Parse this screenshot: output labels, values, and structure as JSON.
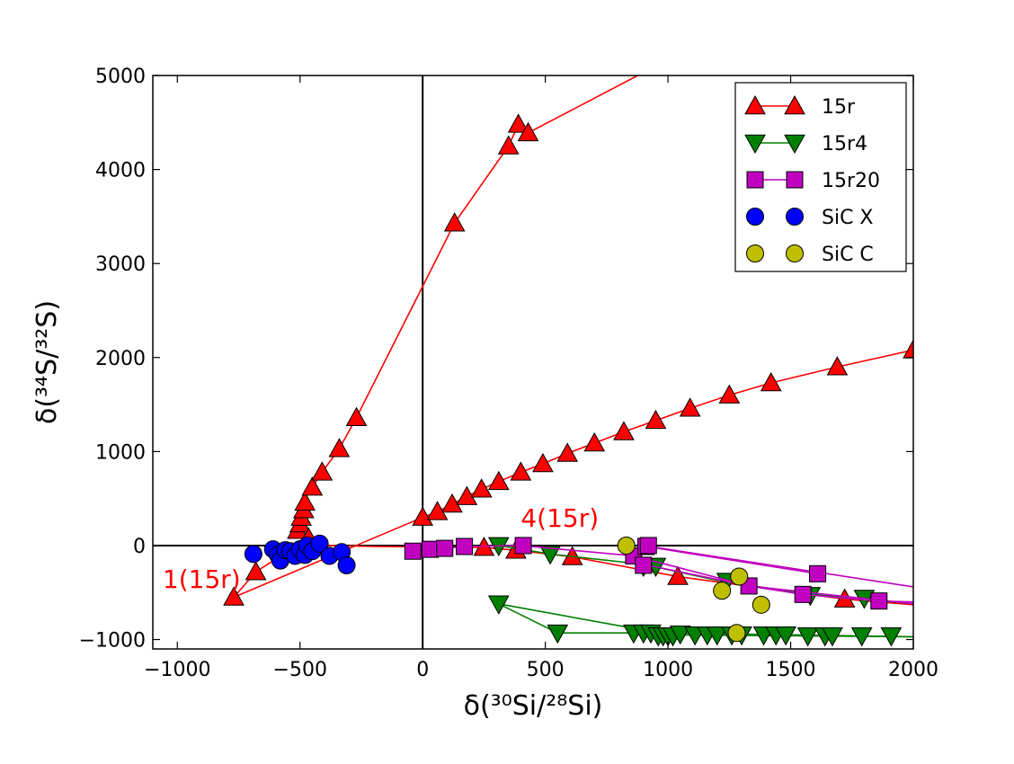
{
  "chart_data": {
    "type": "scatter",
    "title": "",
    "xlabel": "δ(³⁰Si/²⁸Si)",
    "ylabel": "δ(³⁴S/³²S)",
    "xlim": [
      -1100,
      2000
    ],
    "ylim": [
      -1100,
      5000
    ],
    "xticks": [
      -1000,
      -500,
      0,
      500,
      1000,
      1500,
      2000
    ],
    "yticks": [
      -1000,
      0,
      1000,
      2000,
      3000,
      4000,
      5000
    ],
    "xtick_labels": [
      "−1000",
      "−500",
      "0",
      "500",
      "1000",
      "1500",
      "2000"
    ],
    "ytick_labels": [
      "−1000",
      "0",
      "1000",
      "2000",
      "3000",
      "4000",
      "5000"
    ],
    "legend_position": "top-right",
    "reference_lines": {
      "x": 0,
      "y": 0
    },
    "series": [
      {
        "name": "15r",
        "color": "#ff0000",
        "marker": "triangle-up",
        "lines": [
          [
            [
              -770,
              -550
            ],
            [
              -680,
              -280
            ],
            [
              -465,
              80
            ],
            [
              -500,
              140
            ],
            [
              -480,
              280
            ],
            [
              -490,
              460
            ],
            [
              -450,
              620
            ],
            [
              -410,
              780
            ],
            [
              -340,
              1030
            ],
            [
              -270,
              1360
            ],
            [
              130,
              3430
            ],
            [
              350,
              4250
            ],
            [
              390,
              4480
            ],
            [
              430,
              4390
            ],
            [
              1060,
              5250
            ]
          ],
          [
            [
              -770,
              -550
            ],
            [
              0,
              300
            ],
            [
              60,
              360
            ],
            [
              120,
              440
            ],
            [
              180,
              520
            ],
            [
              240,
              600
            ],
            [
              310,
              680
            ],
            [
              400,
              780
            ],
            [
              490,
              870
            ],
            [
              590,
              980
            ],
            [
              700,
              1090
            ],
            [
              820,
              1210
            ],
            [
              950,
              1330
            ],
            [
              1090,
              1460
            ],
            [
              1250,
              1600
            ],
            [
              1420,
              1730
            ],
            [
              1690,
              1900
            ],
            [
              2000,
              2080
            ]
          ],
          [
            [
              -500,
              200
            ],
            [
              -480,
              100
            ],
            [
              -465,
              80
            ],
            [
              -380,
              0
            ],
            [
              -200,
              -10
            ],
            [
              250,
              -20
            ],
            [
              380,
              -50
            ],
            [
              610,
              -120
            ],
            [
              1040,
              -330
            ],
            [
              1720,
              -570
            ],
            [
              2000,
              -630
            ]
          ]
        ],
        "points": [
          [
            -770,
            -550
          ],
          [
            -680,
            -280
          ],
          [
            -510,
            160
          ],
          [
            -500,
            230
          ],
          [
            -495,
            300
          ],
          [
            -485,
            380
          ],
          [
            -465,
            80
          ],
          [
            -480,
            460
          ],
          [
            -450,
            620
          ],
          [
            -410,
            780
          ],
          [
            -340,
            1030
          ],
          [
            -270,
            1360
          ],
          [
            130,
            3430
          ],
          [
            350,
            4250
          ],
          [
            390,
            4480
          ],
          [
            430,
            4390
          ],
          [
            0,
            300
          ],
          [
            60,
            360
          ],
          [
            120,
            440
          ],
          [
            180,
            520
          ],
          [
            240,
            600
          ],
          [
            310,
            680
          ],
          [
            400,
            780
          ],
          [
            490,
            870
          ],
          [
            590,
            980
          ],
          [
            700,
            1090
          ],
          [
            820,
            1210
          ],
          [
            950,
            1330
          ],
          [
            1090,
            1460
          ],
          [
            1250,
            1600
          ],
          [
            1420,
            1730
          ],
          [
            1690,
            1900
          ],
          [
            2000,
            2080
          ],
          [
            250,
            -20
          ],
          [
            380,
            -50
          ],
          [
            610,
            -120
          ],
          [
            1040,
            -330
          ],
          [
            1720,
            -570
          ]
        ]
      },
      {
        "name": "15r4",
        "color": "#008000",
        "marker": "triangle-down",
        "lines": [
          [
            [
              310,
              0
            ],
            [
              520,
              -90
            ],
            [
              900,
              -200
            ],
            [
              1200,
              -370
            ],
            [
              1500,
              -490
            ],
            [
              1800,
              -570
            ],
            [
              2000,
              -620
            ]
          ],
          [
            [
              310,
              -620
            ],
            [
              550,
              -930
            ],
            [
              1000,
              -930
            ],
            [
              2000,
              -970
            ]
          ],
          [
            [
              310,
              -620
            ],
            [
              900,
              -900
            ],
            [
              1000,
              -950
            ],
            [
              2000,
              -970
            ]
          ]
        ],
        "points": [
          [
            310,
            0
          ],
          [
            520,
            -90
          ],
          [
            900,
            -220
          ],
          [
            950,
            -220
          ],
          [
            1240,
            -380
          ],
          [
            1580,
            -530
          ],
          [
            1800,
            -560
          ],
          [
            310,
            -620
          ],
          [
            550,
            -930
          ],
          [
            860,
            -930
          ],
          [
            900,
            -930
          ],
          [
            930,
            -930
          ],
          [
            960,
            -960
          ],
          [
            980,
            -960
          ],
          [
            1000,
            -960
          ],
          [
            1020,
            -960
          ],
          [
            1050,
            -940
          ],
          [
            1110,
            -950
          ],
          [
            1160,
            -950
          ],
          [
            1200,
            -950
          ],
          [
            1260,
            -950
          ],
          [
            1300,
            -950
          ],
          [
            1390,
            -950
          ],
          [
            1440,
            -950
          ],
          [
            1480,
            -950
          ],
          [
            1570,
            -960
          ],
          [
            1640,
            -960
          ],
          [
            1670,
            -960
          ],
          [
            1790,
            -960
          ],
          [
            1910,
            -960
          ]
        ]
      },
      {
        "name": "15r20",
        "color": "#bf00bf",
        "marker": "square",
        "lines": [
          [
            [
              -40,
              -60
            ],
            [
              30,
              -40
            ],
            [
              90,
              -30
            ],
            [
              170,
              -10
            ],
            [
              400,
              0
            ],
            [
              860,
              -110
            ],
            [
              1330,
              -430
            ],
            [
              1550,
              -520
            ],
            [
              1860,
              -590
            ],
            [
              2000,
              -600
            ]
          ],
          [
            [
              900,
              -200
            ],
            [
              1330,
              -430
            ],
            [
              2000,
              -620
            ]
          ],
          [
            [
              900,
              0
            ],
            [
              2000,
              -440
            ]
          ],
          [
            [
              910,
              -10
            ],
            [
              1610,
              -300
            ]
          ]
        ],
        "points": [
          [
            -40,
            -60
          ],
          [
            30,
            -40
          ],
          [
            90,
            -30
          ],
          [
            170,
            -10
          ],
          [
            410,
            0
          ],
          [
            860,
            -110
          ],
          [
            910,
            -10
          ],
          [
            920,
            0
          ],
          [
            900,
            -210
          ],
          [
            1330,
            -430
          ],
          [
            1550,
            -520
          ],
          [
            1610,
            -300
          ],
          [
            1860,
            -590
          ]
        ]
      },
      {
        "name": "SiC X",
        "color": "#0000ff",
        "marker": "circle",
        "lines": [],
        "points": [
          [
            -690,
            -90
          ],
          [
            -610,
            -40
          ],
          [
            -590,
            -100
          ],
          [
            -580,
            -160
          ],
          [
            -560,
            -50
          ],
          [
            -540,
            -60
          ],
          [
            -520,
            -110
          ],
          [
            -500,
            -40
          ],
          [
            -480,
            -100
          ],
          [
            -470,
            0
          ],
          [
            -450,
            -60
          ],
          [
            -420,
            20
          ],
          [
            -380,
            -110
          ],
          [
            -330,
            -70
          ],
          [
            -310,
            -210
          ]
        ]
      },
      {
        "name": "SiC C",
        "color": "#bfbf00",
        "marker": "circle",
        "lines": [],
        "points": [
          [
            830,
            0
          ],
          [
            1220,
            -480
          ],
          [
            1290,
            -330
          ],
          [
            1380,
            -630
          ],
          [
            1280,
            -930
          ]
        ]
      }
    ],
    "annotations": [
      {
        "text": "1(15r)",
        "x": -1060,
        "y": -450
      },
      {
        "text": "4(15r)",
        "x": 400,
        "y": 200
      }
    ]
  }
}
